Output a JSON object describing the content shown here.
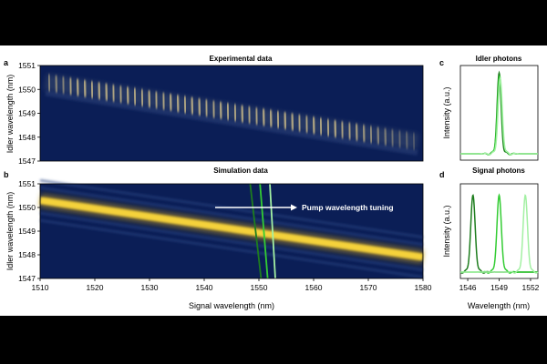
{
  "colors": {
    "background": "#0b1e56",
    "ridge": "#f5d23a",
    "ridge_exp": "#f0d890",
    "green_dark": "#1e7d1e",
    "green_mid": "#33cc33",
    "green_light": "#a3f0a3",
    "arrow": "#ffffff"
  },
  "chart_data": [
    {
      "id": "a",
      "panel_label": "a",
      "type": "heatmap",
      "title": "Experimental data",
      "xlabel": "",
      "ylabel": "Idler wavelength (nm)",
      "xlim": [
        1510,
        1580
      ],
      "ylim": [
        1547,
        1551
      ],
      "yticks": [
        "1547",
        "1548",
        "1549",
        "1550",
        "1551"
      ],
      "ridge": {
        "x": [
          1511,
          1579
        ],
        "y": [
          1550.3,
          1547.8
        ],
        "fringes": 52,
        "fade_start": 1566
      }
    },
    {
      "id": "b",
      "panel_label": "b",
      "type": "heatmap",
      "title": "Simulation data",
      "xlabel": "Signal wavelength (nm)",
      "ylabel": "Idler wavelength (nm)",
      "xlim": [
        1510,
        1580
      ],
      "ylim": [
        1547,
        1551
      ],
      "xticks": [
        "1510",
        "1520",
        "1530",
        "1540",
        "1550",
        "1560",
        "1570",
        "1580"
      ],
      "yticks": [
        "1547",
        "1548",
        "1549",
        "1550",
        "1551"
      ],
      "ridge": {
        "x": [
          1510,
          1580
        ],
        "y": [
          1550.3,
          1547.9
        ]
      },
      "pump_lines": [
        {
          "top": 1548.4,
          "bottom": 1550.4,
          "color": "#1e7d1e"
        },
        {
          "top": 1550.2,
          "bottom": 1551.6,
          "color": "#33cc33"
        },
        {
          "top": 1552.0,
          "bottom": 1553.0,
          "color": "#a3f0a3"
        }
      ],
      "annotation": {
        "text": "Pump wavelength tuning",
        "x_start": 1542,
        "x_end": 1557,
        "y": 1550.0
      }
    },
    {
      "id": "c",
      "panel_label": "c",
      "type": "line",
      "title": "Idler photons",
      "xlabel": "",
      "ylabel": "Intensity (a.u.)",
      "xlim": [
        1545.3,
        1552.7
      ],
      "series": [
        {
          "color": "#1e7d1e",
          "center": 1549.0,
          "width": 0.2,
          "peak": 0.97
        },
        {
          "color": "#33cc33",
          "center": 1549.05,
          "width": 0.22,
          "peak": 0.93
        },
        {
          "color": "#a3f0a3",
          "center": 1549.1,
          "width": 0.21,
          "peak": 0.9
        }
      ]
    },
    {
      "id": "d",
      "panel_label": "d",
      "type": "line",
      "title": "Signal photons",
      "xlabel": "Wavelength (nm)",
      "ylabel": "Intensity (a.u.)",
      "xlim": [
        1545.3,
        1552.7
      ],
      "xticks": [
        "1546",
        "1549",
        "1552"
      ],
      "series": [
        {
          "color": "#1e7d1e",
          "center": 1546.5,
          "width": 0.22,
          "peak": 0.92
        },
        {
          "color": "#33cc33",
          "center": 1549.0,
          "width": 0.22,
          "peak": 0.92
        },
        {
          "color": "#a3f0a3",
          "center": 1551.5,
          "width": 0.22,
          "peak": 0.92
        }
      ]
    }
  ]
}
